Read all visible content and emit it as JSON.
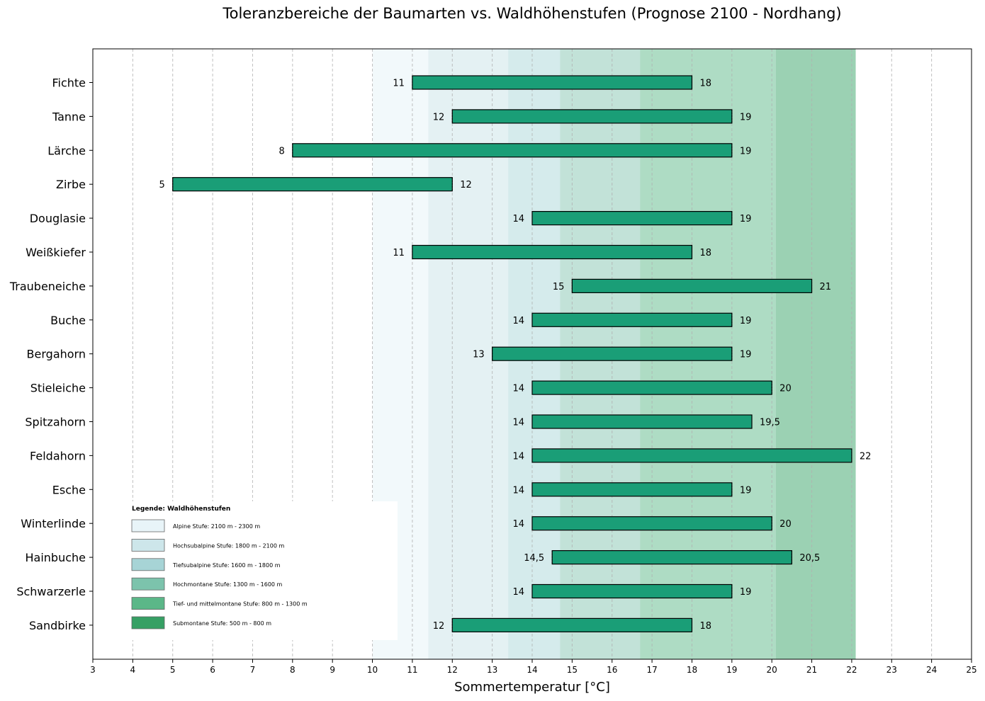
{
  "chart_data": {
    "type": "bar",
    "orientation": "horizontal-range",
    "title": "Toleranzbereiche der Baumarten vs. Waldhöhenstufen (Prognose 2100 - Nordhang)",
    "xlabel": "Sommertemperatur [°C]",
    "ylabel": "",
    "xlim": [
      3,
      25
    ],
    "xticks": [
      3,
      4,
      5,
      6,
      7,
      8,
      9,
      10,
      11,
      12,
      13,
      14,
      15,
      16,
      17,
      18,
      19,
      20,
      21,
      22,
      23,
      24,
      25
    ],
    "grid": "vertical-dashed",
    "bar_color": "#1a9e77",
    "categories": [
      "Fichte",
      "Tanne",
      "Lärche",
      "Zirbe",
      "Douglasie",
      "Weißkiefer",
      "Traubeneiche",
      "Buche",
      "Bergahorn",
      "Stieleiche",
      "Spitzahorn",
      "Feldahorn",
      "Esche",
      "Winterlinde",
      "Hainbuche",
      "Schwarzerle",
      "Sandbirke"
    ],
    "ranges": [
      {
        "min": 11,
        "max": 18,
        "min_label": "11",
        "max_label": "18"
      },
      {
        "min": 12,
        "max": 19,
        "min_label": "12",
        "max_label": "19"
      },
      {
        "min": 8,
        "max": 19,
        "min_label": "8",
        "max_label": "19"
      },
      {
        "min": 5,
        "max": 12,
        "min_label": "5",
        "max_label": "12"
      },
      {
        "min": 14,
        "max": 19,
        "min_label": "14",
        "max_label": "19"
      },
      {
        "min": 11,
        "max": 18,
        "min_label": "11",
        "max_label": "18"
      },
      {
        "min": 15,
        "max": 21,
        "min_label": "15",
        "max_label": "21"
      },
      {
        "min": 14,
        "max": 19,
        "min_label": "14",
        "max_label": "19"
      },
      {
        "min": 13,
        "max": 19,
        "min_label": "13",
        "max_label": "19"
      },
      {
        "min": 14,
        "max": 20,
        "min_label": "14",
        "max_label": "20"
      },
      {
        "min": 14,
        "max": 19.5,
        "min_label": "14",
        "max_label": "19,5"
      },
      {
        "min": 14,
        "max": 22,
        "min_label": "14",
        "max_label": "22"
      },
      {
        "min": 14,
        "max": 19,
        "min_label": "14",
        "max_label": "19"
      },
      {
        "min": 14,
        "max": 20,
        "min_label": "14",
        "max_label": "20"
      },
      {
        "min": 14.5,
        "max": 20.5,
        "min_label": "14,5",
        "max_label": "20,5"
      },
      {
        "min": 14,
        "max": 19,
        "min_label": "14",
        "max_label": "19"
      },
      {
        "min": 12,
        "max": 18,
        "min_label": "12",
        "max_label": "18"
      }
    ],
    "zones": [
      {
        "from": 10.0,
        "to": 11.4,
        "color": "#e8f4f8",
        "opacity": 0.55
      },
      {
        "from": 11.4,
        "to": 13.4,
        "color": "#cde6ea",
        "opacity": 0.55
      },
      {
        "from": 13.4,
        "to": 14.7,
        "color": "#acd7da",
        "opacity": 0.5
      },
      {
        "from": 14.7,
        "to": 16.7,
        "color": "#86c6b2",
        "opacity": 0.5
      },
      {
        "from": 16.7,
        "to": 20.1,
        "color": "#5db98a",
        "opacity": 0.5
      },
      {
        "from": 20.1,
        "to": 22.1,
        "color": "#37a368",
        "opacity": 0.5
      }
    ],
    "legend": {
      "title": "Legende: Waldhöhenstufen",
      "placement": "lower-left",
      "items": [
        {
          "label": "Alpine Stufe: 2100 m - 2300 m",
          "color": "#e8f4f8"
        },
        {
          "label": "Hochsubalpine Stufe: 1800 m - 2100 m",
          "color": "#cde6ea"
        },
        {
          "label": "Tiefsubalpine Stufe: 1600 m - 1800 m",
          "color": "#a7d4d6"
        },
        {
          "label": "Hochmontane Stufe: 1300 m - 1600 m",
          "color": "#7cc3ac"
        },
        {
          "label": "Tief- und mittelmontane Stufe: 800 m - 1300 m",
          "color": "#5bb788"
        },
        {
          "label": "Submontane Stufe: 500 m - 800 m",
          "color": "#36a064"
        }
      ]
    }
  }
}
